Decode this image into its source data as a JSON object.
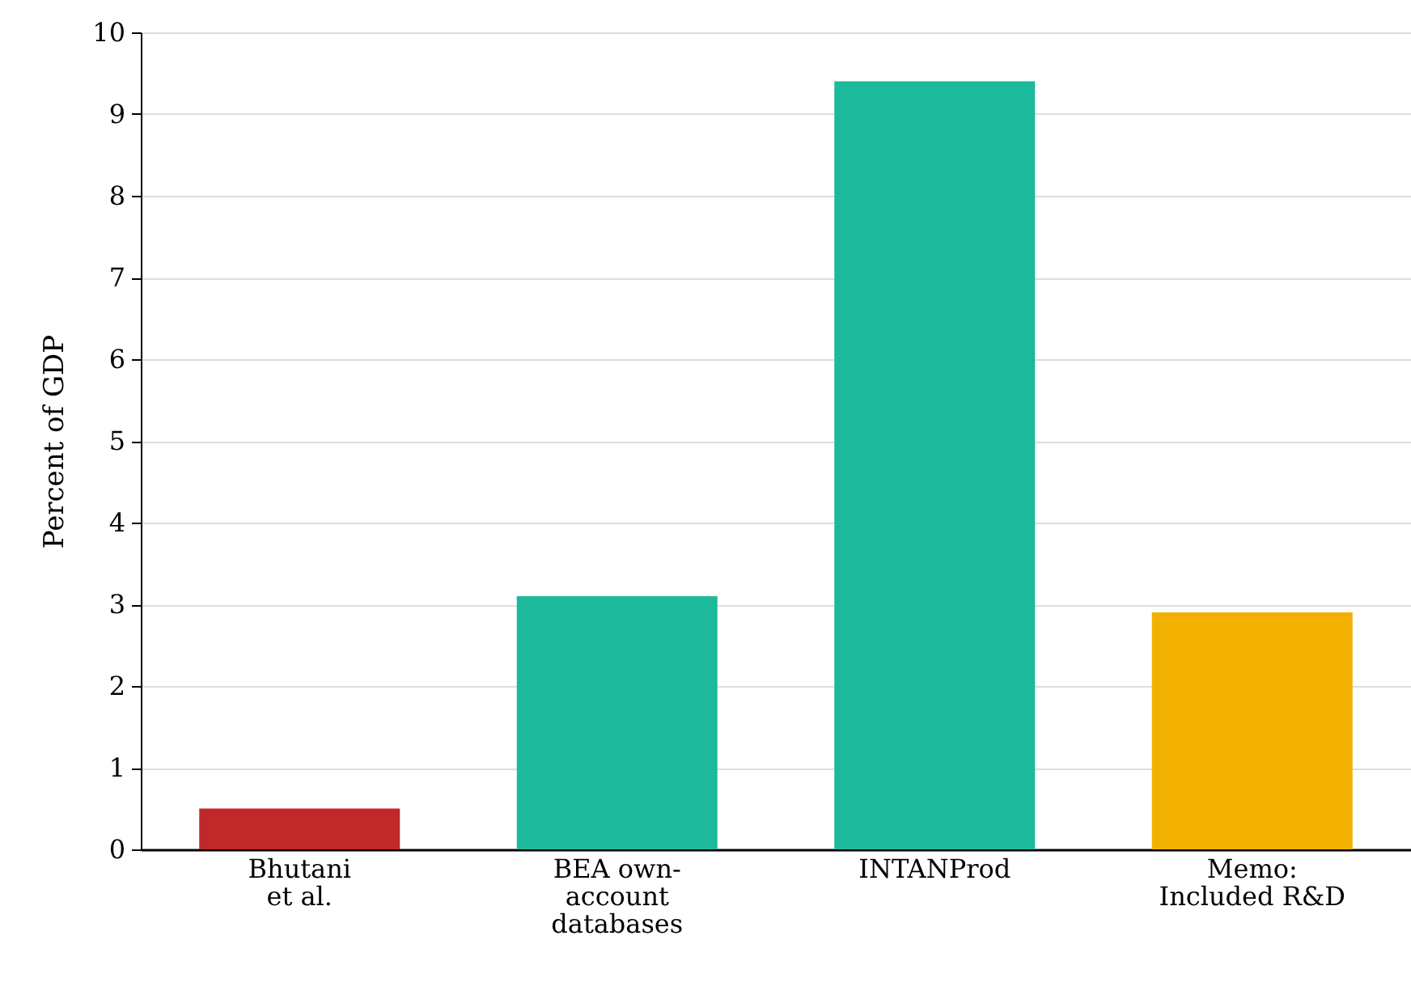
{
  "chart_data": {
    "type": "bar",
    "ylabel": "Percent of GDP",
    "categories": [
      "Bhutani\net al.",
      "BEA own-\naccount\ndatabases",
      "INTANProd",
      "Memo:\nIncluded R&D"
    ],
    "values": [
      0.5,
      3.1,
      9.4,
      2.9
    ],
    "colors": [
      "#c0282a",
      "#1cb99b",
      "#1cb99b",
      "#f2b000"
    ],
    "ylim": [
      0,
      10
    ],
    "yticks": [
      0,
      1,
      2,
      3,
      4,
      5,
      6,
      7,
      8,
      9,
      10
    ],
    "grid": "y"
  }
}
